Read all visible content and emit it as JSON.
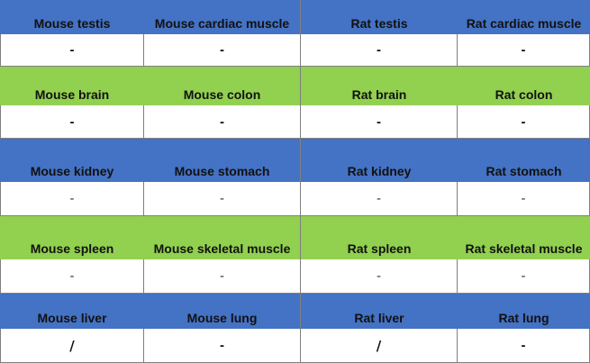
{
  "rows": [
    {
      "type": "header",
      "color": "#4472c4",
      "cells": [
        "Mouse testis",
        "Mouse cardiac muscle",
        "Rat testis",
        "Rat cardiac muscle"
      ]
    },
    {
      "type": "value",
      "cells": [
        "-",
        "-",
        "-",
        "-"
      ]
    },
    {
      "type": "header",
      "color": "#92d050",
      "cells": [
        "Mouse brain",
        "Mouse colon",
        "Rat brain",
        "Rat colon"
      ]
    },
    {
      "type": "value",
      "cells": [
        "-",
        "-",
        "-",
        "-"
      ]
    },
    {
      "type": "header",
      "color": "#4472c4",
      "cells": [
        "Mouse kidney",
        "Mouse stomach",
        "Rat kidney",
        "Rat stomach"
      ]
    },
    {
      "type": "value",
      "cells": [
        "-",
        "-",
        "-",
        "-"
      ]
    },
    {
      "type": "header",
      "color": "#92d050",
      "cells": [
        "Mouse spleen",
        "Mouse skeletal muscle",
        "Rat spleen",
        "Rat skeletal muscle"
      ]
    },
    {
      "type": "value",
      "cells": [
        "-",
        "-",
        "-",
        "-"
      ]
    },
    {
      "type": "header",
      "color": "#4472c4",
      "cells": [
        "Mouse liver",
        "Mouse lung",
        "Rat liver",
        "Rat lung"
      ]
    },
    {
      "type": "value",
      "cells": [
        "/",
        "-",
        "/",
        "-"
      ]
    }
  ]
}
